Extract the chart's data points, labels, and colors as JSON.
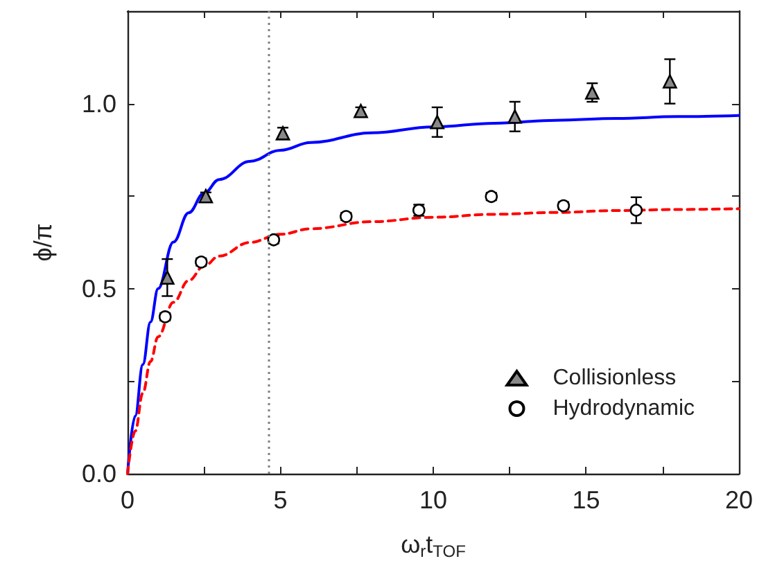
{
  "chart_data": {
    "type": "scatter",
    "xlabel": "ω$_{r}$t$_{TOF}$",
    "ylabel": "ϕ/π",
    "xlim": [
      0,
      20
    ],
    "xticks": [
      0,
      {
        "value": 2.5,
        "label": null
      },
      5,
      {
        "value": 7.5,
        "label": null
      },
      10,
      {
        "value": 12.5,
        "label": null
      },
      15,
      {
        "value": 17.5,
        "label": null
      },
      20
    ],
    "ylim": [
      0,
      1.25
    ],
    "yticks": [
      {
        "value": 0,
        "label": "0.0"
      },
      {
        "value": 0.25,
        "label": null
      },
      {
        "value": 0.5,
        "label": "0.5"
      },
      {
        "value": 0.75,
        "label": null
      },
      {
        "value": 1,
        "label": "1.0"
      }
    ],
    "legend": "bottom right",
    "grid": false,
    "ref_lines": [
      {
        "axis": "x",
        "value": 4.6,
        "color": "#808080",
        "line_style": "dotted"
      }
    ],
    "series": [
      {
        "type": "line",
        "color": "#0000ff",
        "line_style": "solid",
        "marker": "none",
        "x": [
          0,
          0.25,
          0.5,
          0.75,
          1,
          1.5,
          2,
          2.5,
          3,
          4,
          5,
          6,
          8,
          10,
          12,
          14,
          16,
          18,
          20
        ],
        "values": [
          0,
          0.156,
          0.295,
          0.41,
          0.5,
          0.626,
          0.705,
          0.758,
          0.795,
          0.844,
          0.874,
          0.895,
          0.921,
          0.937,
          0.947,
          0.955,
          0.96,
          0.965,
          0.968
        ]
      },
      {
        "type": "line",
        "color": "#ff0000",
        "line_style": "dashed",
        "marker": "none",
        "x": [
          0,
          0.25,
          0.5,
          0.75,
          1,
          1.5,
          2,
          2.5,
          3,
          4,
          5,
          6,
          8,
          10,
          12,
          14,
          16,
          18,
          20
        ],
        "values": [
          0,
          0.115,
          0.218,
          0.303,
          0.37,
          0.463,
          0.522,
          0.561,
          0.588,
          0.625,
          0.647,
          0.662,
          0.681,
          0.693,
          0.701,
          0.706,
          0.711,
          0.714,
          0.716
        ]
      },
      {
        "type": "scatter",
        "name": "Collisionless",
        "color": "#000000",
        "marker": "triangle",
        "x": [
          1.3,
          2.56,
          5.08,
          7.63,
          10.13,
          12.67,
          15.2,
          17.74
        ],
        "values": [
          0.53,
          0.75,
          0.92,
          0.98,
          0.95,
          0.965,
          1.03,
          1.06
        ],
        "errors": [
          0.05,
          0.01,
          0.015,
          0.01,
          0.04,
          0.04,
          0.025,
          0.06
        ]
      },
      {
        "type": "scatter",
        "name": "Hydrodynamic",
        "color": "#000000",
        "marker": "circle",
        "x": [
          1.23,
          2.41,
          4.78,
          7.15,
          9.53,
          11.9,
          14.26,
          16.64
        ],
        "values": [
          0.424,
          0.572,
          0.632,
          0.695,
          0.712,
          0.749,
          0.724,
          0.712
        ],
        "errors": [
          0.01,
          0.01,
          0.01,
          0.01,
          0.015,
          0.01,
          0.01,
          0.035
        ]
      }
    ]
  }
}
